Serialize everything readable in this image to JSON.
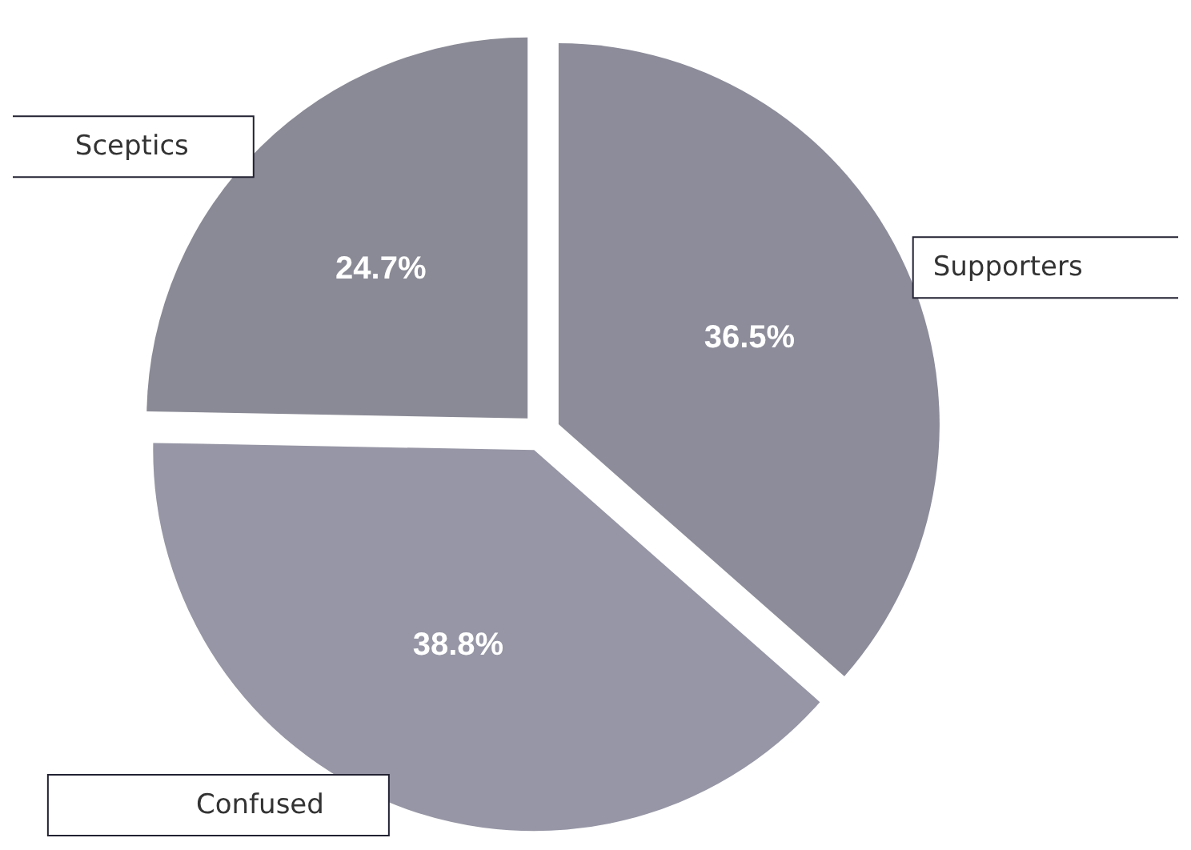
{
  "chart_data": {
    "type": "pie",
    "categories": [
      "Supporters",
      "Confused",
      "Sceptics"
    ],
    "values": [
      36.5,
      38.8,
      24.7
    ],
    "colors": [
      "#8c8c9a",
      "#9696a6",
      "#8a8a96"
    ],
    "value_labels": [
      "36.5%",
      "38.8%",
      "24.7%"
    ],
    "legend": false
  }
}
